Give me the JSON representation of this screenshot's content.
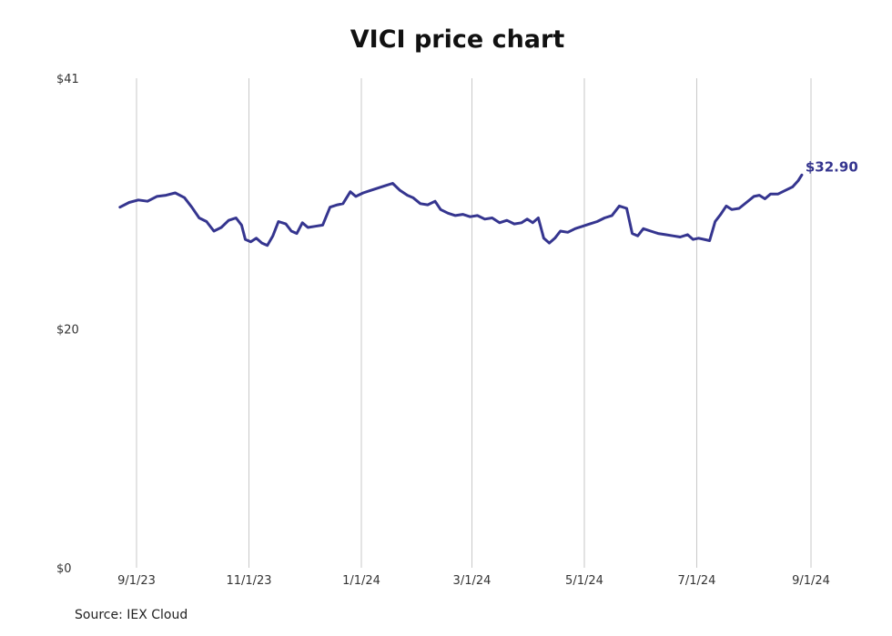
{
  "title": "VICI price chart",
  "source": "Source: IEX Cloud",
  "colors": {
    "line": "#35358f",
    "grid": "#c8c8c8"
  },
  "chart_data": {
    "type": "line",
    "title": "VICI price chart",
    "xlabel": "",
    "ylabel": "",
    "grid": "vertical",
    "x_tick_labels": [
      "9/1/23",
      "11/1/23",
      "1/1/24",
      "3/1/24",
      "5/1/24",
      "7/1/24",
      "9/1/24"
    ],
    "x_tick_dates": [
      "2023-09-01",
      "2023-11-01",
      "2024-01-01",
      "2024-03-01",
      "2024-05-01",
      "2024-07-01",
      "2024-09-01"
    ],
    "y_tick_labels": [
      "$0",
      "$20",
      "$41"
    ],
    "y_ticks": [
      0,
      20,
      41
    ],
    "ylim": [
      0,
      41
    ],
    "xlim": [
      "2023-09-01",
      "2024-09-01"
    ],
    "end_label": "$32.90",
    "series": [
      {
        "points": [
          [
            "2023-08-23",
            30.2
          ],
          [
            "2023-08-28",
            30.6
          ],
          [
            "2023-09-02",
            30.8
          ],
          [
            "2023-09-07",
            30.7
          ],
          [
            "2023-09-12",
            31.1
          ],
          [
            "2023-09-17",
            31.2
          ],
          [
            "2023-09-22",
            31.4
          ],
          [
            "2023-09-27",
            31.0
          ],
          [
            "2023-10-01",
            30.2
          ],
          [
            "2023-10-05",
            29.3
          ],
          [
            "2023-10-09",
            29.0
          ],
          [
            "2023-10-13",
            28.2
          ],
          [
            "2023-10-17",
            28.5
          ],
          [
            "2023-10-21",
            29.1
          ],
          [
            "2023-10-25",
            29.3
          ],
          [
            "2023-10-28",
            28.7
          ],
          [
            "2023-10-30",
            27.5
          ],
          [
            "2023-11-02",
            27.3
          ],
          [
            "2023-11-05",
            27.6
          ],
          [
            "2023-11-08",
            27.2
          ],
          [
            "2023-11-11",
            27.0
          ],
          [
            "2023-11-14",
            27.8
          ],
          [
            "2023-11-17",
            29.0
          ],
          [
            "2023-11-21",
            28.8
          ],
          [
            "2023-11-24",
            28.2
          ],
          [
            "2023-11-27",
            28.0
          ],
          [
            "2023-11-30",
            28.9
          ],
          [
            "2023-12-03",
            28.5
          ],
          [
            "2023-12-07",
            28.6
          ],
          [
            "2023-12-11",
            28.7
          ],
          [
            "2023-12-15",
            30.2
          ],
          [
            "2023-12-19",
            30.4
          ],
          [
            "2023-12-22",
            30.5
          ],
          [
            "2023-12-26",
            31.5
          ],
          [
            "2023-12-29",
            31.1
          ],
          [
            "2024-01-02",
            31.4
          ],
          [
            "2024-01-06",
            31.6
          ],
          [
            "2024-01-10",
            31.8
          ],
          [
            "2024-01-14",
            32.0
          ],
          [
            "2024-01-18",
            32.2
          ],
          [
            "2024-01-22",
            31.6
          ],
          [
            "2024-01-26",
            31.2
          ],
          [
            "2024-01-29",
            31.0
          ],
          [
            "2024-02-02",
            30.5
          ],
          [
            "2024-02-06",
            30.4
          ],
          [
            "2024-02-10",
            30.7
          ],
          [
            "2024-02-13",
            30.0
          ],
          [
            "2024-02-17",
            29.7
          ],
          [
            "2024-02-21",
            29.5
          ],
          [
            "2024-02-25",
            29.6
          ],
          [
            "2024-02-29",
            29.4
          ],
          [
            "2024-03-04",
            29.5
          ],
          [
            "2024-03-08",
            29.2
          ],
          [
            "2024-03-12",
            29.3
          ],
          [
            "2024-03-16",
            28.9
          ],
          [
            "2024-03-20",
            29.1
          ],
          [
            "2024-03-24",
            28.8
          ],
          [
            "2024-03-28",
            28.9
          ],
          [
            "2024-03-31",
            29.2
          ],
          [
            "2024-04-03",
            28.9
          ],
          [
            "2024-04-06",
            29.3
          ],
          [
            "2024-04-09",
            27.6
          ],
          [
            "2024-04-12",
            27.2
          ],
          [
            "2024-04-15",
            27.6
          ],
          [
            "2024-04-18",
            28.2
          ],
          [
            "2024-04-22",
            28.1
          ],
          [
            "2024-04-26",
            28.4
          ],
          [
            "2024-04-30",
            28.6
          ],
          [
            "2024-05-04",
            28.8
          ],
          [
            "2024-05-08",
            29.0
          ],
          [
            "2024-05-12",
            29.3
          ],
          [
            "2024-05-16",
            29.5
          ],
          [
            "2024-05-20",
            30.3
          ],
          [
            "2024-05-24",
            30.1
          ],
          [
            "2024-05-27",
            28.0
          ],
          [
            "2024-05-30",
            27.8
          ],
          [
            "2024-06-02",
            28.4
          ],
          [
            "2024-06-06",
            28.2
          ],
          [
            "2024-06-10",
            28.0
          ],
          [
            "2024-06-14",
            27.9
          ],
          [
            "2024-06-18",
            27.8
          ],
          [
            "2024-06-22",
            27.7
          ],
          [
            "2024-06-26",
            27.9
          ],
          [
            "2024-06-29",
            27.5
          ],
          [
            "2024-07-02",
            27.6
          ],
          [
            "2024-07-05",
            27.5
          ],
          [
            "2024-07-08",
            27.4
          ],
          [
            "2024-07-11",
            29.0
          ],
          [
            "2024-07-14",
            29.6
          ],
          [
            "2024-07-17",
            30.3
          ],
          [
            "2024-07-20",
            30.0
          ],
          [
            "2024-07-24",
            30.1
          ],
          [
            "2024-07-28",
            30.6
          ],
          [
            "2024-08-01",
            31.1
          ],
          [
            "2024-08-04",
            31.2
          ],
          [
            "2024-08-07",
            30.9
          ],
          [
            "2024-08-10",
            31.3
          ],
          [
            "2024-08-14",
            31.3
          ],
          [
            "2024-08-18",
            31.6
          ],
          [
            "2024-08-22",
            31.9
          ],
          [
            "2024-08-25",
            32.4
          ],
          [
            "2024-08-27",
            32.9
          ]
        ]
      }
    ]
  }
}
